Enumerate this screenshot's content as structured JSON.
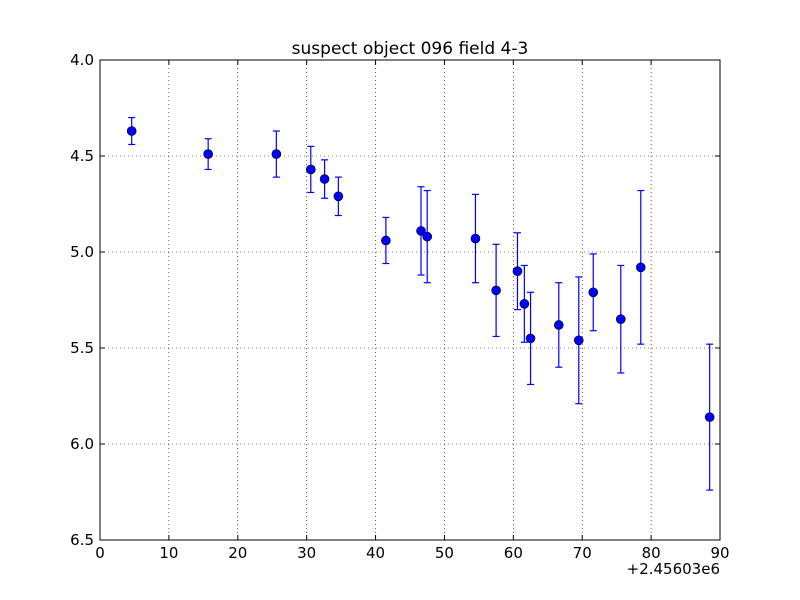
{
  "chart_data": {
    "type": "scatter",
    "title": "suspect object 096 field 4-3",
    "xlabel": "",
    "ylabel": "",
    "x_offset_label": "+2.45603e6",
    "xlim": [
      0,
      90
    ],
    "ylim": [
      6.5,
      4.0
    ],
    "y_inverted": true,
    "grid": true,
    "x_ticks": [
      0,
      10,
      20,
      30,
      40,
      50,
      60,
      70,
      80,
      90
    ],
    "x_tick_labels": [
      "0",
      "10",
      "20",
      "30",
      "40",
      "50",
      "60",
      "70",
      "80",
      "90"
    ],
    "y_ticks": [
      4.0,
      4.5,
      5.0,
      5.5,
      6.0,
      6.5
    ],
    "y_tick_labels": [
      "4.0",
      "4.5",
      "5.0",
      "5.5",
      "6.0",
      "6.5"
    ],
    "series": [
      {
        "color": "#0000ff",
        "marker": "circle",
        "points": [
          {
            "x": 4.6,
            "y": 4.37,
            "err": 0.07
          },
          {
            "x": 15.7,
            "y": 4.49,
            "err": 0.08
          },
          {
            "x": 25.6,
            "y": 4.49,
            "err": 0.12
          },
          {
            "x": 30.6,
            "y": 4.57,
            "err": 0.12
          },
          {
            "x": 32.6,
            "y": 4.62,
            "err": 0.1
          },
          {
            "x": 34.6,
            "y": 4.71,
            "err": 0.1
          },
          {
            "x": 41.5,
            "y": 4.94,
            "err": 0.12
          },
          {
            "x": 46.6,
            "y": 4.89,
            "err": 0.23
          },
          {
            "x": 47.5,
            "y": 4.92,
            "err": 0.24
          },
          {
            "x": 54.5,
            "y": 4.93,
            "err": 0.23
          },
          {
            "x": 57.5,
            "y": 5.2,
            "err": 0.24
          },
          {
            "x": 60.6,
            "y": 5.1,
            "err": 0.2
          },
          {
            "x": 61.6,
            "y": 5.27,
            "err": 0.2
          },
          {
            "x": 62.5,
            "y": 5.45,
            "err": 0.24
          },
          {
            "x": 66.6,
            "y": 5.38,
            "err": 0.22
          },
          {
            "x": 69.5,
            "y": 5.46,
            "err": 0.33
          },
          {
            "x": 71.6,
            "y": 5.21,
            "err": 0.2
          },
          {
            "x": 75.6,
            "y": 5.35,
            "err": 0.28
          },
          {
            "x": 78.5,
            "y": 5.08,
            "err": 0.4
          },
          {
            "x": 88.5,
            "y": 5.86,
            "err": 0.38
          }
        ]
      }
    ]
  }
}
